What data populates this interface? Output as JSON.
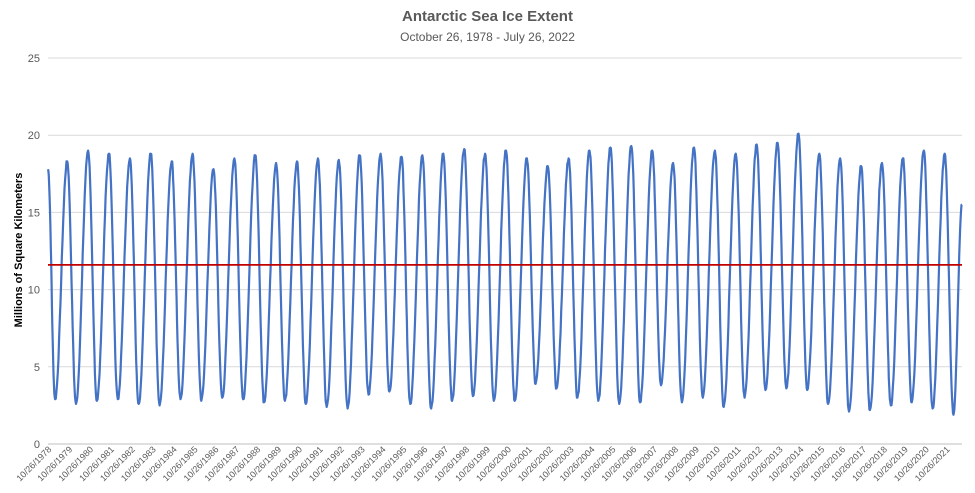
{
  "chart_data": {
    "type": "line",
    "title": "Antarctic Sea Ice Extent",
    "subtitle": "October 26, 1978 - July 26, 2022",
    "ylabel": "Millions of Square Kilometers",
    "xlabel": "",
    "ylim": [
      0,
      25
    ],
    "yticks": [
      0,
      5,
      10,
      15,
      20,
      25
    ],
    "grid": true,
    "legend": "none",
    "x_tick_labels": [
      "10/26/1978",
      "10/26/1979",
      "10/26/1980",
      "10/26/1981",
      "10/26/1982",
      "10/26/1983",
      "10/26/1984",
      "10/26/1985",
      "10/26/1986",
      "10/26/1987",
      "10/26/1988",
      "10/26/1989",
      "10/26/1990",
      "10/26/1991",
      "10/26/1992",
      "10/26/1993",
      "10/26/1994",
      "10/26/1995",
      "10/26/1996",
      "10/26/1997",
      "10/26/1998",
      "10/26/1999",
      "10/26/2000",
      "10/26/2001",
      "10/26/2002",
      "10/26/2003",
      "10/26/2004",
      "10/26/2005",
      "10/26/2006",
      "10/26/2007",
      "10/26/2008",
      "10/26/2009",
      "10/26/2010",
      "10/26/2011",
      "10/26/2012",
      "10/26/2013",
      "10/26/2014",
      "10/26/2015",
      "10/26/2016",
      "10/26/2017",
      "10/26/2018",
      "10/26/2019",
      "10/26/2020",
      "10/26/2021"
    ],
    "x_range": [
      "10/26/1978",
      "7/26/2022"
    ],
    "series": [
      {
        "color": "#4472C4",
        "start": "10/26/1978",
        "seasonal_maxima": [
          18.3,
          19.0,
          18.8,
          18.5,
          18.8,
          18.3,
          18.8,
          17.8,
          18.5,
          18.7,
          18.2,
          18.3,
          18.5,
          18.4,
          18.7,
          18.8,
          18.6,
          18.7,
          18.8,
          19.1,
          18.8,
          19.0,
          18.5,
          18.0,
          18.5,
          19.0,
          19.2,
          19.3,
          19.0,
          18.2,
          19.2,
          19.0,
          18.8,
          19.4,
          19.5,
          20.1,
          18.8,
          18.5,
          18.0,
          18.2,
          18.5,
          19.0,
          18.8
        ],
        "seasonal_minima": [
          2.9,
          2.6,
          2.8,
          2.9,
          2.6,
          2.5,
          2.9,
          2.8,
          3.0,
          2.9,
          2.7,
          2.8,
          2.6,
          2.4,
          2.3,
          3.2,
          3.4,
          2.6,
          2.3,
          2.8,
          3.1,
          2.8,
          2.8,
          3.9,
          3.6,
          3.0,
          2.8,
          2.6,
          2.7,
          3.8,
          2.7,
          3.0,
          2.4,
          3.0,
          3.5,
          3.6,
          3.5,
          2.6,
          2.1,
          2.2,
          2.5,
          2.7,
          2.3,
          1.9
        ],
        "end_value": 15.5
      },
      {
        "color": "#C00000",
        "values": [
          11.6,
          11.6
        ]
      }
    ]
  }
}
